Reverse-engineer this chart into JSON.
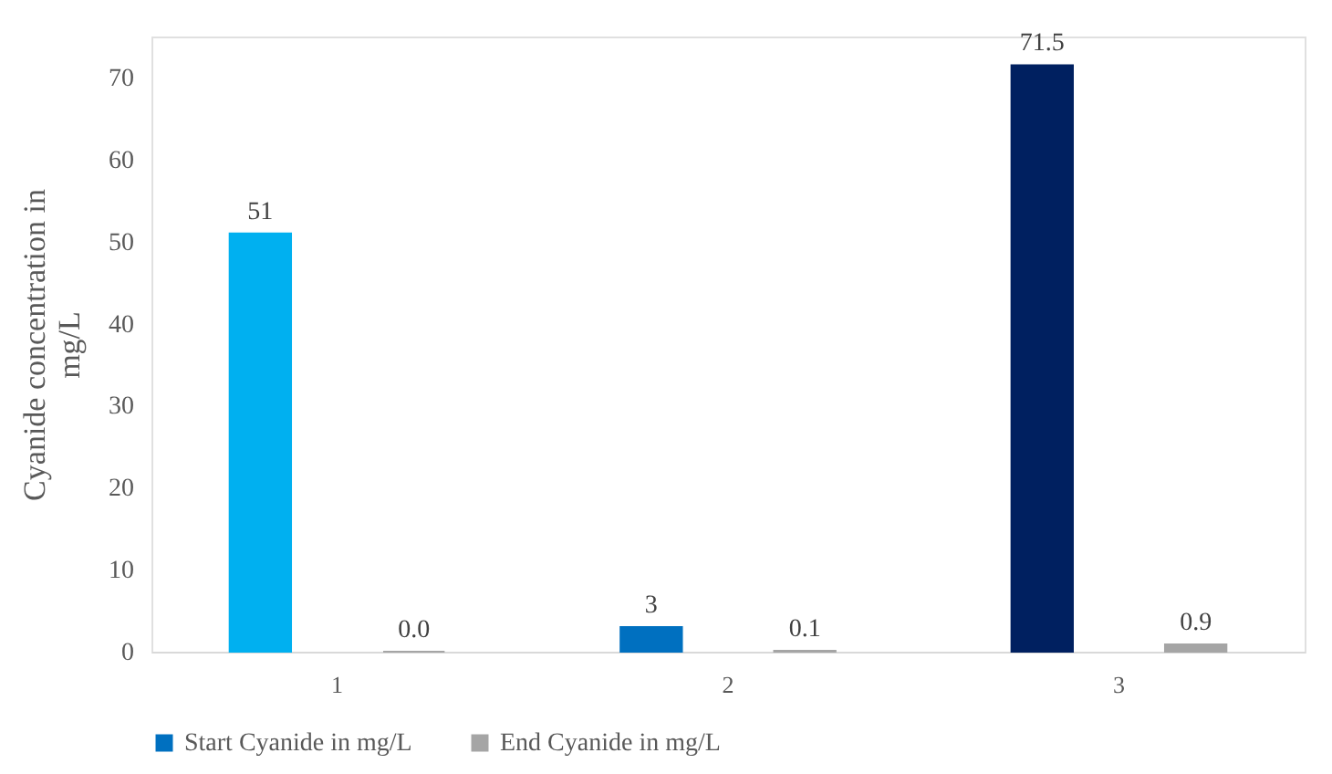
{
  "chart_data": {
    "type": "bar",
    "ylabel": "Cyanide concentration in mg/L",
    "categories": [
      "1",
      "2",
      "3"
    ],
    "series": [
      {
        "name": "Start Cyanide in mg/L",
        "color": "#0070c0",
        "colors": [
          "#00b0f0",
          "#0070c0",
          "#002060"
        ],
        "values": [
          51,
          3,
          71.5
        ],
        "value_labels": [
          "51",
          "3",
          "71.5"
        ]
      },
      {
        "name": "End Cyanide in mg/L",
        "color": "#a5a5a5",
        "colors": [
          "#a5a5a5",
          "#a5a5a5",
          "#a5a5a5"
        ],
        "values": [
          0.0,
          0.1,
          0.9
        ],
        "value_labels": [
          "0.0",
          "0.1",
          "0.9"
        ]
      }
    ],
    "ylim": [
      0,
      75
    ],
    "yticks": [
      0,
      10,
      20,
      30,
      40,
      50,
      60,
      70
    ],
    "grid": false,
    "legend": "bottom"
  }
}
